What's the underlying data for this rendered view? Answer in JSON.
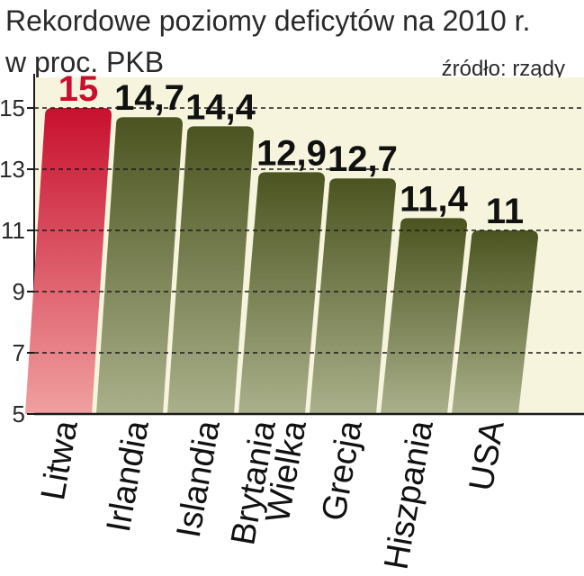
{
  "header": {
    "title": "Rekordowe poziomy deficytów na 2010 r.",
    "subtitle": "w proc. PKB",
    "source": "źródło: rządy"
  },
  "colors": {
    "highlight_top": "#c8102e",
    "highlight_bottom": "#f0a0a0",
    "bar_top": "#4b5420",
    "bar_bottom": "#aab08a",
    "highlight_label": "#c8102e",
    "label": "#111111",
    "plot_background": "#f6f4dc",
    "grid": "#1a1a1a"
  },
  "chart_data": {
    "type": "bar",
    "title": "Rekordowe poziomy deficytów na 2010 r.",
    "subtitle": "w proc. PKB",
    "source": "źródło: rządy",
    "categories": [
      "Litwa",
      "Irlandia",
      "Islandia",
      "Wielka Brytania",
      "Grecja",
      "Hiszpania",
      "USA"
    ],
    "category_lines": [
      [
        "Litwa"
      ],
      [
        "Irlandia"
      ],
      [
        "Islandia"
      ],
      [
        "Wielka",
        "Brytania"
      ],
      [
        "Grecja"
      ],
      [
        "Hiszpania"
      ],
      [
        "USA"
      ]
    ],
    "values": [
      15,
      14.7,
      14.4,
      12.9,
      12.7,
      11.4,
      11
    ],
    "value_labels": [
      "15",
      "14,7",
      "14,4",
      "12,9",
      "12,7",
      "11,4",
      "11"
    ],
    "highlight_index": 0,
    "ylim": [
      5,
      16
    ],
    "yticks": [
      5,
      7,
      9,
      11,
      13,
      15
    ],
    "grid": true,
    "xlabel": "",
    "ylabel": ""
  }
}
